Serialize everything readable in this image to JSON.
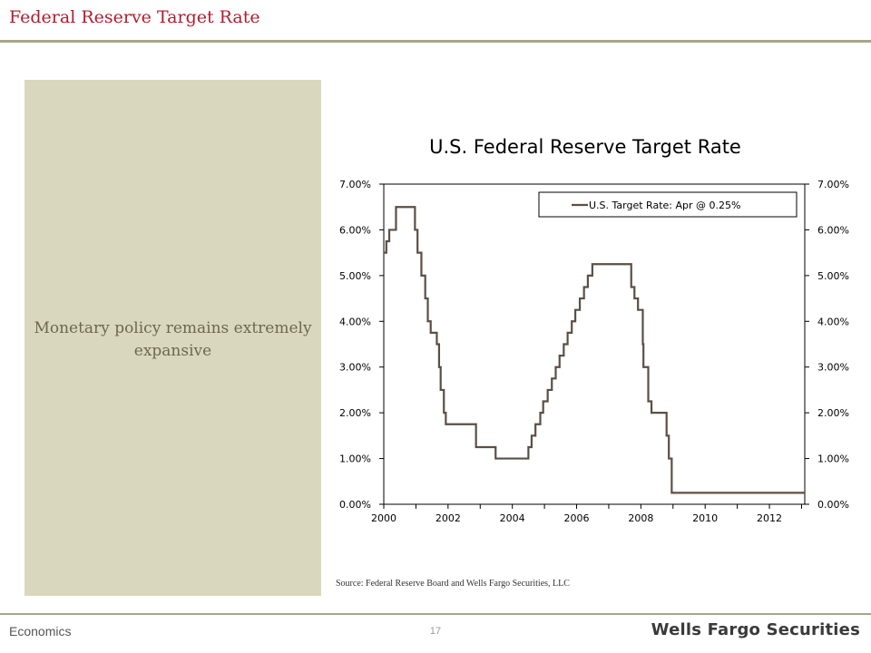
{
  "slide": {
    "title": "Federal Reserve Target Rate",
    "panel_text": "Monetary policy remains extremely expansive",
    "footer_left": "Economics",
    "page_number": "17",
    "brand": "Wells Fargo Securities",
    "source": "Source:  Federal Reserve Board and Wells Fargo Securities, LLC"
  },
  "colors": {
    "title_red": "#b01c2e",
    "panel_bg": "#d9d8bf",
    "rule": "#a9a58a",
    "series_line": "#5b4f45"
  },
  "chart_data": {
    "type": "line",
    "title": "U.S. Federal Reserve Target Rate",
    "xlim": [
      2000,
      2013.1
    ],
    "ylim": [
      0,
      7
    ],
    "y_ticks": [
      "0.00%",
      "1.00%",
      "2.00%",
      "3.00%",
      "4.00%",
      "5.00%",
      "6.00%",
      "7.00%"
    ],
    "y_tick_values": [
      0,
      1,
      2,
      3,
      4,
      5,
      6,
      7
    ],
    "x_ticks": [
      "2000",
      "2002",
      "2004",
      "2006",
      "2008",
      "2010",
      "2012"
    ],
    "x_tick_values": [
      2000,
      2002,
      2004,
      2006,
      2008,
      2010,
      2012
    ],
    "dual_y_axis": true,
    "grid": false,
    "legend_position": "top-right",
    "series": [
      {
        "name": "U.S. Target Rate: Apr @ 0.25%",
        "step": true,
        "x": [
          2000.0,
          2000.08,
          2000.17,
          2000.38,
          2000.97,
          2001.05,
          2001.17,
          2001.29,
          2001.37,
          2001.46,
          2001.65,
          2001.72,
          2001.77,
          2001.87,
          2001.93,
          2002.87,
          2003.48,
          2004.5,
          2004.6,
          2004.72,
          2004.87,
          2004.96,
          2005.1,
          2005.23,
          2005.35,
          2005.47,
          2005.6,
          2005.72,
          2005.85,
          2005.96,
          2006.1,
          2006.23,
          2006.35,
          2006.49,
          2007.7,
          2007.8,
          2007.91,
          2008.06,
          2008.08,
          2008.23,
          2008.33,
          2008.8,
          2008.87,
          2008.96,
          2013.1
        ],
        "values": [
          5.5,
          5.75,
          6.0,
          6.5,
          6.0,
          5.5,
          5.0,
          4.5,
          4.0,
          3.75,
          3.5,
          3.0,
          2.5,
          2.0,
          1.75,
          1.25,
          1.0,
          1.25,
          1.5,
          1.75,
          2.0,
          2.25,
          2.5,
          2.75,
          3.0,
          3.25,
          3.5,
          3.75,
          4.0,
          4.25,
          4.5,
          4.75,
          5.0,
          5.25,
          4.75,
          4.5,
          4.25,
          3.5,
          3.0,
          2.25,
          2.0,
          1.5,
          1.0,
          0.25,
          0.25
        ]
      }
    ]
  }
}
